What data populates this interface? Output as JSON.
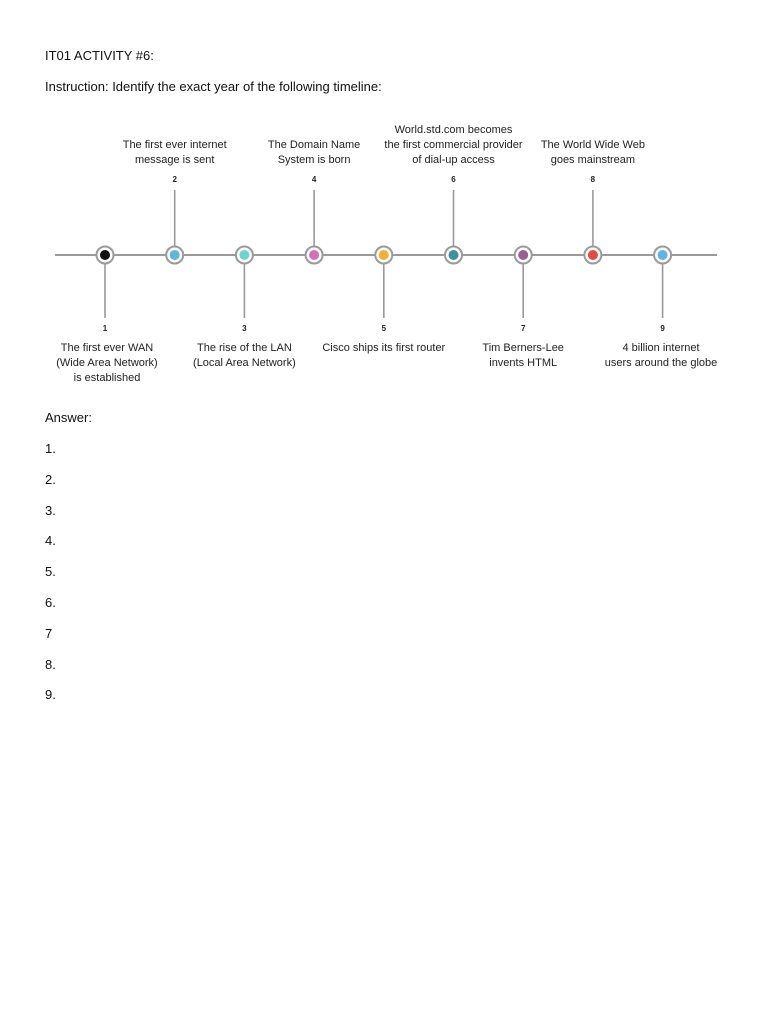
{
  "document": {
    "title": "IT01 ACTIVITY #6:",
    "instruction": "Instruction: Identify the exact year of the following timeline:"
  },
  "timeline": {
    "events": [
      {
        "number": "1",
        "label": "The first ever WAN\n(Wide Area Network)\nis established",
        "position": "bottom",
        "dot_color": "#111111"
      },
      {
        "number": "2",
        "label": "The first ever internet\nmessage is sent",
        "position": "top",
        "dot_color": "#5bb8dc"
      },
      {
        "number": "3",
        "label": "The rise of the LAN\n(Local Area Network)",
        "position": "bottom",
        "dot_color": "#6ed3d3"
      },
      {
        "number": "4",
        "label": "The Domain Name\nSystem is born",
        "position": "top",
        "dot_color": "#d56fb8"
      },
      {
        "number": "5",
        "label": "Cisco ships its first router",
        "position": "bottom",
        "dot_color": "#f2b134"
      },
      {
        "number": "6",
        "label": "World.std.com becomes\nthe first commercial provider\nof dial-up access",
        "position": "top",
        "dot_color": "#3d8fa3"
      },
      {
        "number": "7",
        "label": "Tim Berners-Lee\ninvents HTML",
        "position": "bottom",
        "dot_color": "#9a5e96"
      },
      {
        "number": "8",
        "label": "The World Wide Web\ngoes mainstream",
        "position": "top",
        "dot_color": "#e8483f"
      },
      {
        "number": "9",
        "label": "4 billion internet\nusers around the globe",
        "position": "bottom",
        "dot_color": "#5fb6e2"
      }
    ]
  },
  "answers": {
    "title": "Answer:",
    "items": [
      "1.",
      "2.",
      "3.",
      "4.",
      "5.",
      "6.",
      "7",
      "8.",
      "9."
    ]
  }
}
